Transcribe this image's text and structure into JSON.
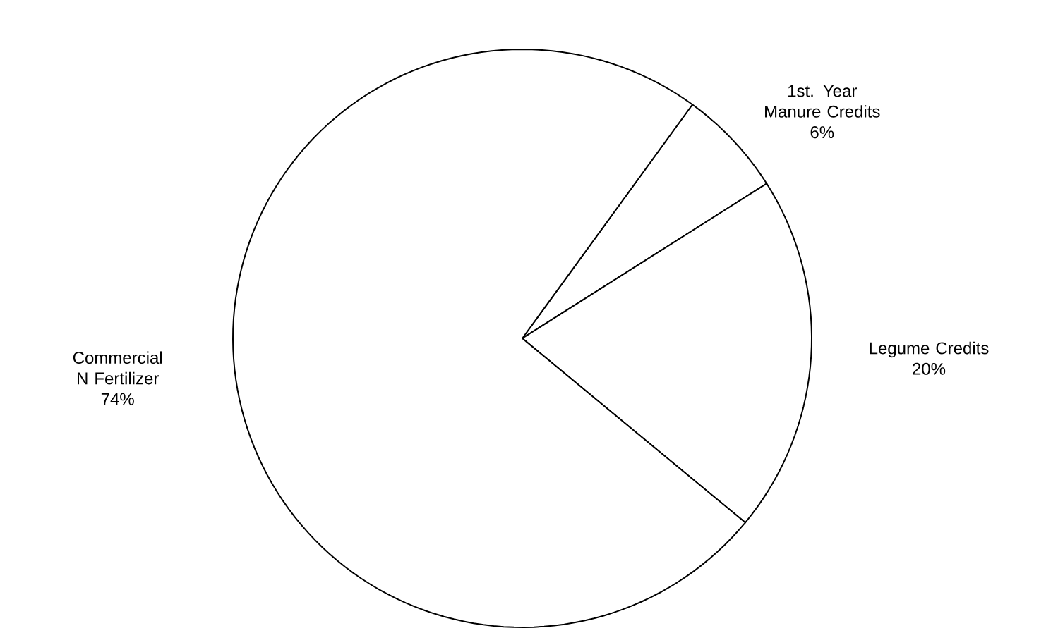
{
  "chart_data": {
    "type": "pie",
    "categories": [
      "1st. Year Manure Credits",
      "Legume Credits",
      "Commercial N Fertilizer"
    ],
    "values": [
      6,
      20,
      74
    ],
    "value_labels": [
      "6%",
      "20%",
      "74%"
    ],
    "colors": [
      "#ffffff",
      "#ffffff",
      "#ffffff"
    ]
  }
}
